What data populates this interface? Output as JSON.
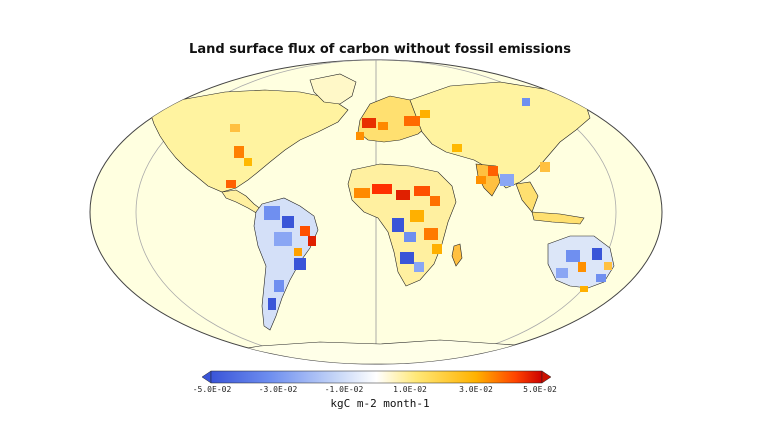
{
  "title": "Land surface flux of carbon without fossil emissions",
  "colorbar": {
    "ticks": [
      "-5.0E-02",
      "-3.0E-02",
      "-1.0E-02",
      "1.0E-02",
      "3.0E-02",
      "5.0E-02"
    ],
    "units": "kgC m-2 month-1",
    "colors": [
      "#3a55d8",
      "#6f8ff0",
      "#bcd0f7",
      "#ffffff",
      "#ffe878",
      "#ffb200",
      "#ff4400",
      "#cc0000"
    ],
    "min_arrow_color": "#3a55d8",
    "max_arrow_color": "#cc1100"
  },
  "map": {
    "ocean_color": "#ffffe0",
    "land_base_color": "#fff6b3",
    "projection": "robinson-like"
  }
}
